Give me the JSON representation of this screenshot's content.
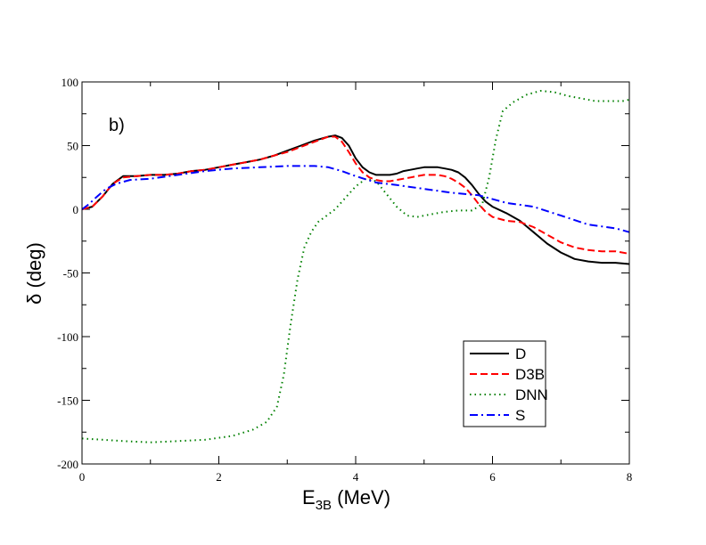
{
  "chart_data": {
    "type": "line",
    "title": "",
    "panel_label": "b)",
    "xlabel_main": "E",
    "xlabel_sub": "3B",
    "xlabel_unit": " (MeV)",
    "ylabel": "δ (deg)",
    "xlim": [
      0,
      8
    ],
    "ylim": [
      -200,
      100
    ],
    "xticks": [
      0,
      2,
      4,
      6,
      8
    ],
    "xtick_labels": [
      "0",
      "2",
      "4",
      "6",
      "8"
    ],
    "yticks": [
      -200,
      -150,
      -100,
      -50,
      0,
      50,
      100
    ],
    "ytick_labels": [
      "-200",
      "-150",
      "-100",
      "-50",
      "0",
      "50",
      "100"
    ],
    "grid": false,
    "legend_position": "lower-right",
    "series": [
      {
        "name": "D",
        "color": "#000000",
        "dash": "solid",
        "x": [
          0.0,
          0.15,
          0.3,
          0.45,
          0.6,
          0.8,
          1.0,
          1.2,
          1.4,
          1.6,
          1.8,
          2.0,
          2.2,
          2.4,
          2.6,
          2.8,
          3.0,
          3.2,
          3.4,
          3.6,
          3.7,
          3.8,
          3.9,
          4.0,
          4.1,
          4.2,
          4.3,
          4.4,
          4.5,
          4.6,
          4.7,
          4.8,
          4.9,
          5.0,
          5.1,
          5.2,
          5.3,
          5.4,
          5.5,
          5.6,
          5.7,
          5.8,
          5.9,
          6.0,
          6.2,
          6.4,
          6.6,
          6.8,
          7.0,
          7.2,
          7.4,
          7.6,
          7.8,
          8.0
        ],
        "y": [
          0,
          2,
          10,
          20,
          26,
          26,
          27,
          27,
          28,
          30,
          31,
          33,
          35,
          37,
          39,
          42,
          46,
          50,
          54,
          57,
          58,
          56,
          50,
          40,
          33,
          29,
          27,
          27,
          27,
          28,
          30,
          31,
          32,
          33,
          33,
          33,
          32,
          31,
          29,
          25,
          19,
          12,
          6,
          2,
          -3,
          -9,
          -18,
          -27,
          -34,
          -39,
          -41,
          -42,
          -42,
          -43
        ]
      },
      {
        "name": "D3B",
        "color": "#ff0000",
        "dash": "dashed",
        "x": [
          0.0,
          0.15,
          0.3,
          0.45,
          0.6,
          0.8,
          1.0,
          1.2,
          1.4,
          1.6,
          1.8,
          2.0,
          2.2,
          2.4,
          2.6,
          2.8,
          3.0,
          3.2,
          3.4,
          3.6,
          3.7,
          3.8,
          3.9,
          4.0,
          4.1,
          4.2,
          4.3,
          4.4,
          4.5,
          4.6,
          4.7,
          4.8,
          4.9,
          5.0,
          5.1,
          5.2,
          5.3,
          5.4,
          5.5,
          5.6,
          5.7,
          5.8,
          5.9,
          6.0,
          6.2,
          6.4,
          6.6,
          6.8,
          7.0,
          7.2,
          7.4,
          7.6,
          7.8,
          8.0
        ],
        "y": [
          0,
          2,
          10,
          20,
          25,
          26,
          27,
          27,
          28,
          30,
          31,
          33,
          35,
          37,
          39,
          42,
          45,
          49,
          53,
          57,
          57,
          53,
          45,
          36,
          29,
          25,
          23,
          22,
          22,
          23,
          24,
          25,
          26,
          27,
          27,
          27,
          26,
          24,
          21,
          17,
          11,
          4,
          -2,
          -6,
          -9,
          -10,
          -14,
          -20,
          -26,
          -30,
          -32,
          -33,
          -33,
          -35
        ]
      },
      {
        "name": "DNN",
        "color": "#008000",
        "dash": "dotted",
        "x": [
          0.0,
          0.3,
          0.6,
          1.0,
          1.4,
          1.8,
          2.2,
          2.5,
          2.7,
          2.85,
          2.95,
          3.05,
          3.15,
          3.25,
          3.35,
          3.45,
          3.55,
          3.7,
          3.85,
          4.0,
          4.15,
          4.3,
          4.45,
          4.6,
          4.75,
          4.9,
          5.1,
          5.3,
          5.5,
          5.7,
          5.85,
          5.95,
          6.05,
          6.15,
          6.3,
          6.5,
          6.7,
          6.9,
          7.1,
          7.3,
          7.5,
          7.7,
          7.9,
          8.0
        ],
        "y": [
          -180,
          -181,
          -182,
          -183,
          -182,
          -181,
          -178,
          -173,
          -167,
          -155,
          -130,
          -90,
          -55,
          -30,
          -18,
          -10,
          -6,
          0,
          9,
          18,
          24,
          22,
          12,
          2,
          -5,
          -6,
          -4,
          -2,
          -1,
          -1,
          4,
          25,
          55,
          77,
          84,
          90,
          93,
          92,
          89,
          87,
          85,
          85,
          85,
          86
        ]
      },
      {
        "name": "S",
        "color": "#0000ff",
        "dash": "dashdot",
        "x": [
          0.0,
          0.1,
          0.2,
          0.35,
          0.5,
          0.7,
          1.0,
          1.4,
          1.8,
          2.2,
          2.6,
          3.0,
          3.4,
          3.6,
          3.8,
          4.0,
          4.3,
          4.6,
          5.0,
          5.4,
          5.8,
          6.2,
          6.6,
          7.0,
          7.4,
          7.8,
          8.0
        ],
        "y": [
          0,
          4,
          9,
          16,
          20,
          23,
          24,
          27,
          30,
          32,
          33,
          34,
          34,
          33,
          30,
          26,
          21,
          19,
          16,
          13,
          11,
          5,
          2,
          -5,
          -12,
          -15,
          -18
        ]
      }
    ]
  }
}
